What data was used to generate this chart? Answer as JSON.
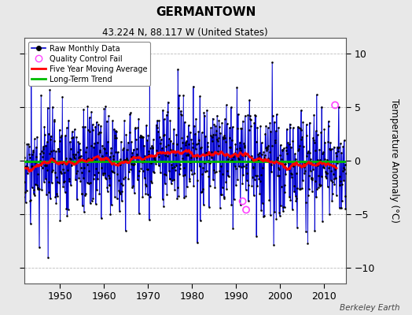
{
  "title": "GERMANTOWN",
  "subtitle": "43.224 N, 88.117 W (United States)",
  "ylabel": "Temperature Anomaly (°C)",
  "credit": "Berkeley Earth",
  "ylim": [
    -11.5,
    11.5
  ],
  "yticks": [
    -10,
    -5,
    0,
    5,
    10
  ],
  "year_start": 1940,
  "year_end": 2014,
  "xlim": [
    1942,
    2015
  ],
  "xticks": [
    1950,
    1960,
    1970,
    1980,
    1990,
    2000,
    2010
  ],
  "background_color": "#e8e8e8",
  "plot_bg_color": "#ffffff",
  "bar_color": "#8888ff",
  "line_color": "#0000cc",
  "dot_color": "#000000",
  "ma_color": "#ff0000",
  "trend_color": "#00bb00",
  "qc_color": "#ff44ff",
  "seed": 17
}
